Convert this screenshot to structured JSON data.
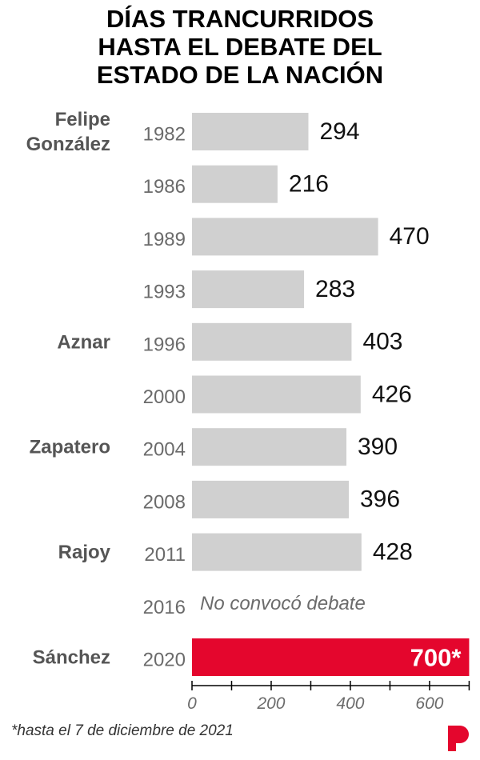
{
  "title_lines": [
    "DÍAS TRANCURRIDOS",
    "HASTA EL DEBATE DEL",
    "ESTADO DE LA NACIÓN"
  ],
  "footnote": "*hasta el 7 de diciembre de 2021",
  "colors": {
    "bar": "#d0d0d0",
    "highlight": "#e4062d",
    "presidents": "#555555",
    "years": "#6b6b6b",
    "values": "#111111",
    "axis": "#000000",
    "logo": "#e4062d"
  },
  "logo_icon": "brand-p-logo-icon",
  "chart_data": {
    "type": "bar",
    "orientation": "horizontal",
    "title": "DÍAS TRANCURRIDOS HASTA EL DEBATE DEL ESTADO DE LA NACIÓN",
    "categories": [
      "1982",
      "1986",
      "1989",
      "1993",
      "1996",
      "2000",
      "2004",
      "2008",
      "2011",
      "2016",
      "2020"
    ],
    "values": [
      294,
      216,
      470,
      283,
      403,
      426,
      390,
      396,
      428,
      null,
      700
    ],
    "value_labels": [
      "294",
      "216",
      "470",
      "283",
      "403",
      "426",
      "390",
      "396",
      "428",
      "",
      "700*"
    ],
    "highlight_index": 10,
    "annotations": [
      {
        "category": "2016",
        "text": "No convocó debate"
      }
    ],
    "groups": [
      {
        "label": "Felipe\nGonzález",
        "category": "1982"
      },
      {
        "label": "Aznar",
        "category": "1996"
      },
      {
        "label": "Zapatero",
        "category": "2004"
      },
      {
        "label": "Rajoy",
        "category": "2011"
      },
      {
        "label": "Sánchez",
        "category": "2020"
      }
    ],
    "xlim": [
      0,
      700
    ],
    "xticks": [
      0,
      200,
      400,
      600
    ],
    "minor_ticks": [
      100,
      300,
      500,
      700
    ],
    "grid": false,
    "legend": "none"
  }
}
